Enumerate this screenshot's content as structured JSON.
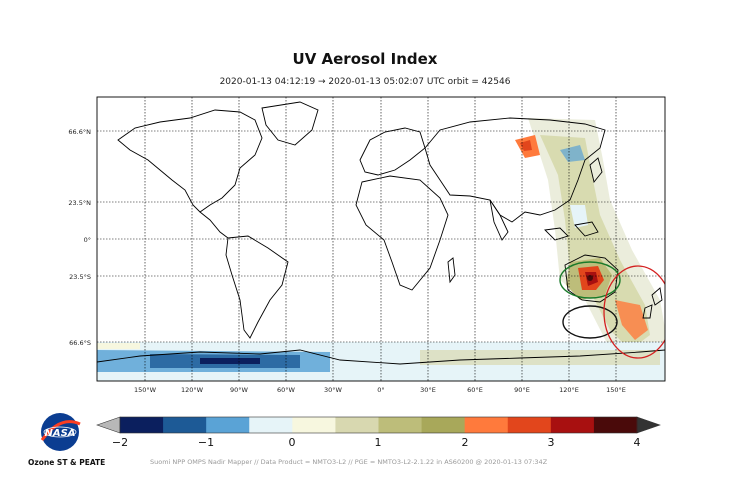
{
  "title": "UV Aerosol Index",
  "subtitle": "2020-01-13 04:12:19 → 2020-01-13 05:02:07 UTC   orbit = 42546",
  "map": {
    "lat_labels": [
      "66.6°N",
      "23.5°N",
      "0°",
      "23.5°S",
      "66.6°S"
    ],
    "lon_labels": [
      "150°W",
      "120°W",
      "90°W",
      "60°W",
      "30°W",
      "0°",
      "30°E",
      "60°E",
      "90°E",
      "120°E",
      "150°E"
    ]
  },
  "colorbar": {
    "min": -2,
    "max": 4,
    "tick_labels": [
      "−2",
      "−1",
      "0",
      "1",
      "2",
      "3",
      "4"
    ],
    "colors": [
      "#0b1f5e",
      "#1d5a96",
      "#5aa3d6",
      "#e6f4f8",
      "#f7f7df",
      "#d8d8b0",
      "#bdbd7a",
      "#a8a85a",
      "#ff7a3c",
      "#e2461c",
      "#a81010",
      "#4a0a0a"
    ]
  },
  "logo": {
    "text": "NASA",
    "caption": "Ozone ST & PEATE"
  },
  "footer": "Suomi NPP OMPS Nadir Mapper  //  Data Product = NMTO3-L2  //  PGE = NMTO3-L2-2.1.22 in AS60200 @ 2020-01-13 07:34Z"
}
